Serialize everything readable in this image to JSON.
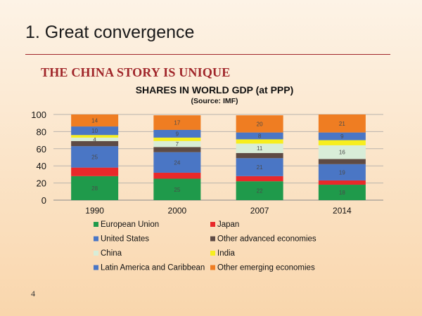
{
  "slide": {
    "title": "1. Great convergence",
    "subheading": "THE CHINA STORY IS UNIQUE",
    "page_number": "4"
  },
  "chart_data": {
    "type": "bar",
    "stacked": true,
    "title": "SHARES IN WORLD GDP (at PPP)",
    "subtitle": "(Source: IMF)",
    "xlabel": "",
    "ylabel": "",
    "ylim": [
      0,
      100
    ],
    "yticks": [
      0,
      20,
      40,
      60,
      80,
      100
    ],
    "grid": true,
    "legend_position": "bottom",
    "categories": [
      "1990",
      "2000",
      "2007",
      "2014"
    ],
    "series": [
      {
        "name": "European Union",
        "color": "#1f9a4b",
        "values": [
          28,
          25,
          22,
          18
        ],
        "labels": [
          "28",
          "25",
          "22",
          "18"
        ]
      },
      {
        "name": "Japan",
        "color": "#e8292a",
        "values": [
          10,
          7,
          6,
          5
        ],
        "labels": [
          "",
          "",
          "",
          ""
        ]
      },
      {
        "name": "Latin America and  Caribbean",
        "color": "#4a76c5",
        "values": [
          25,
          24,
          21,
          19
        ],
        "labels": [
          "25",
          "24",
          "21",
          "19"
        ]
      },
      {
        "name": "Other advanced economies",
        "color": "#5e4b45",
        "values": [
          6,
          6,
          6,
          6
        ],
        "labels": [
          "",
          "",
          "",
          ""
        ]
      },
      {
        "name": "China",
        "color": "#d8edd8",
        "values": [
          4,
          7,
          11,
          16
        ],
        "labels": [
          "4",
          "7",
          "11",
          "16"
        ]
      },
      {
        "name": "India",
        "color": "#f7ee1e",
        "values": [
          3,
          4,
          5,
          6
        ],
        "labels": [
          "",
          "",
          "",
          ""
        ]
      },
      {
        "name": "United States",
        "color": "#4a76c5",
        "values": [
          10,
          9,
          8,
          9
        ],
        "labels": [
          "10",
          "9",
          "8",
          "9"
        ]
      },
      {
        "name": "Other emerging economies",
        "color": "#ef7d22",
        "values": [
          14,
          17,
          20,
          21
        ],
        "labels": [
          "14",
          "17",
          "20",
          "21"
        ]
      }
    ],
    "legend": [
      {
        "name": "European Union",
        "color": "#1f9a4b"
      },
      {
        "name": "Japan",
        "color": "#e8292a"
      },
      {
        "name": "United States",
        "color": "#4a76c5"
      },
      {
        "name": "Other advanced economies",
        "color": "#5e4b45"
      },
      {
        "name": "China",
        "color": "#d8edd8"
      },
      {
        "name": "India",
        "color": "#f7ee1e"
      },
      {
        "name": "Latin America and  Caribbean",
        "color": "#4a76c5"
      },
      {
        "name": "Other emerging economies",
        "color": "#ef7d22"
      }
    ]
  }
}
